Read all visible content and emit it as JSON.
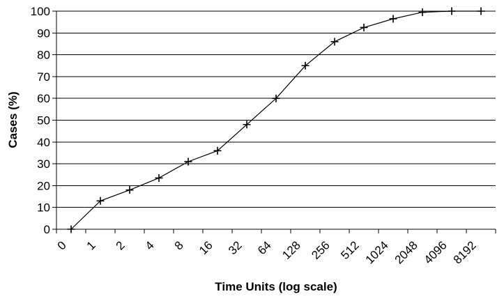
{
  "chart_data": {
    "type": "line",
    "title": "",
    "xlabel": "Time Units (log scale)",
    "ylabel": "Cases (%)",
    "categories": [
      "0",
      "1",
      "2",
      "4",
      "8",
      "16",
      "32",
      "64",
      "128",
      "256",
      "512",
      "1024",
      "2048",
      "4096",
      "8192"
    ],
    "values": [
      0,
      13,
      18,
      23.5,
      31,
      36,
      48,
      60,
      75,
      86,
      92.5,
      96.5,
      99.5,
      100,
      100
    ],
    "y_ticks": [
      0,
      10,
      20,
      30,
      40,
      50,
      60,
      70,
      80,
      90,
      100
    ],
    "ylim": [
      0,
      100
    ],
    "grid": "horizontal",
    "legend": "none",
    "marker": "plus",
    "x_label_rotation_deg": 45,
    "colors": {
      "series": "#000000",
      "axis": "#000000",
      "gridline": "#000000",
      "text": "#000000",
      "background": "#ffffff"
    }
  }
}
